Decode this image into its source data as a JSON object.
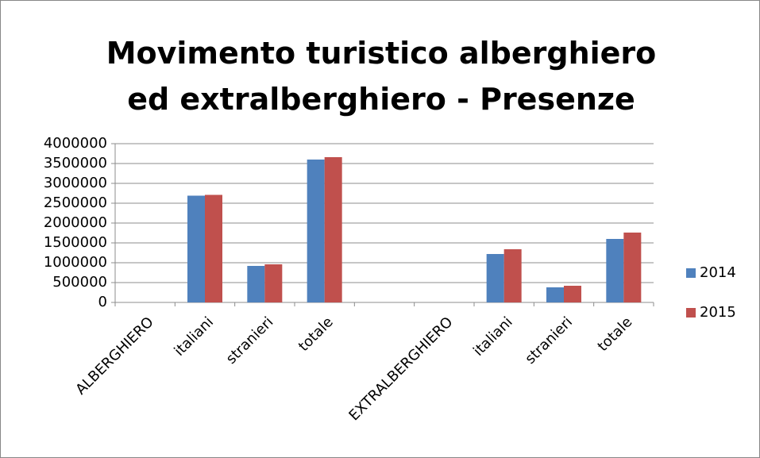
{
  "chart_data": {
    "type": "bar",
    "title": "Movimento turistico alberghiero ed extralberghiero - Presenze",
    "categories": [
      "ALBERGHIERO",
      "italiani",
      "stranieri",
      "totale",
      null,
      "EXTRALBERGHIERO",
      "italiani",
      "stranieri",
      "totale"
    ],
    "series": [
      {
        "name": "2014",
        "color": "#4f81bd",
        "values": [
          null,
          2690000,
          920000,
          3600000,
          null,
          null,
          1220000,
          380000,
          1600000
        ]
      },
      {
        "name": "2015",
        "color": "#c0504d",
        "values": [
          null,
          2710000,
          960000,
          3660000,
          null,
          null,
          1340000,
          420000,
          1760000
        ]
      }
    ],
    "ylim": [
      0,
      4000000
    ],
    "yticks": [
      0,
      500000,
      1000000,
      1500000,
      2000000,
      2500000,
      3000000,
      3500000,
      4000000
    ],
    "grid": true,
    "legend": "right"
  }
}
